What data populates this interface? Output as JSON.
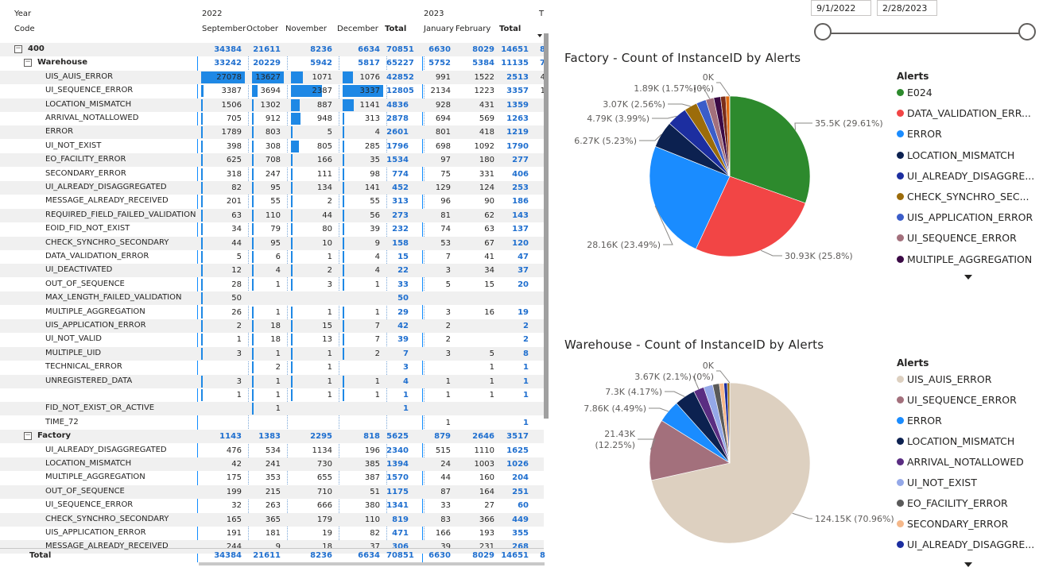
{
  "matrix": {
    "row_headers": [
      "Year",
      "Code"
    ],
    "years": [
      "2022",
      "2023",
      "T"
    ],
    "months": [
      "September",
      "October",
      "November",
      "December",
      "Total",
      "January",
      "February",
      "Total"
    ],
    "total_label": "Total",
    "totals": [
      "34384",
      "21611",
      "8236",
      "6634",
      "70851",
      "6630",
      "8029",
      "14651",
      "8"
    ],
    "rows": [
      {
        "level": 0,
        "label": "400",
        "exp": "⊟",
        "v": [
          "34384",
          "21611",
          "8236",
          "6634",
          "70851",
          "6630",
          "8029",
          "14651",
          "8"
        ]
      },
      {
        "level": 1,
        "label": "Warehouse",
        "exp": "⊟",
        "v": [
          "33242",
          "20229",
          "5942",
          "5817",
          "65227",
          "5752",
          "5384",
          "11135",
          "7"
        ]
      },
      {
        "level": 2,
        "label": "UIS_AUIS_ERROR",
        "v": [
          "27078",
          "13627",
          "1071",
          "1076",
          "42852",
          "991",
          "1522",
          "2513",
          "4"
        ]
      },
      {
        "level": 2,
        "label": "UI_SEQUENCE_ERROR",
        "v": [
          "3387",
          "3694",
          "2387",
          "3337",
          "12805",
          "2134",
          "1223",
          "3357",
          "1"
        ]
      },
      {
        "level": 2,
        "label": "LOCATION_MISMATCH",
        "v": [
          "1506",
          "1302",
          "887",
          "1141",
          "4836",
          "928",
          "431",
          "1359",
          ""
        ]
      },
      {
        "level": 2,
        "label": "ARRIVAL_NOTALLOWED",
        "v": [
          "705",
          "912",
          "948",
          "313",
          "2878",
          "694",
          "569",
          "1263",
          ""
        ]
      },
      {
        "level": 2,
        "label": "ERROR",
        "v": [
          "1789",
          "803",
          "5",
          "4",
          "2601",
          "801",
          "418",
          "1219",
          ""
        ]
      },
      {
        "level": 2,
        "label": "UI_NOT_EXIST",
        "v": [
          "398",
          "308",
          "805",
          "285",
          "1796",
          "698",
          "1092",
          "1790",
          ""
        ]
      },
      {
        "level": 2,
        "label": "EO_FACILITY_ERROR",
        "v": [
          "625",
          "708",
          "166",
          "35",
          "1534",
          "97",
          "180",
          "277",
          ""
        ]
      },
      {
        "level": 2,
        "label": "SECONDARY_ERROR",
        "v": [
          "318",
          "247",
          "111",
          "98",
          "774",
          "75",
          "331",
          "406",
          ""
        ]
      },
      {
        "level": 2,
        "label": "UI_ALREADY_DISAGGREGATED",
        "v": [
          "82",
          "95",
          "134",
          "141",
          "452",
          "129",
          "124",
          "253",
          ""
        ]
      },
      {
        "level": 2,
        "label": "MESSAGE_ALREADY_RECEIVED",
        "v": [
          "201",
          "55",
          "2",
          "55",
          "313",
          "96",
          "90",
          "186",
          ""
        ]
      },
      {
        "level": 2,
        "label": "REQUIRED_FIELD_FAILED_VALIDATION",
        "v": [
          "63",
          "110",
          "44",
          "56",
          "273",
          "81",
          "62",
          "143",
          ""
        ]
      },
      {
        "level": 2,
        "label": "EOID_FID_NOT_EXIST",
        "v": [
          "34",
          "79",
          "80",
          "39",
          "232",
          "74",
          "63",
          "137",
          ""
        ]
      },
      {
        "level": 2,
        "label": "CHECK_SYNCHRO_SECONDARY",
        "v": [
          "44",
          "95",
          "10",
          "9",
          "158",
          "53",
          "67",
          "120",
          ""
        ]
      },
      {
        "level": 2,
        "label": "DATA_VALIDATION_ERROR",
        "v": [
          "5",
          "6",
          "1",
          "4",
          "15",
          "7",
          "41",
          "47",
          ""
        ]
      },
      {
        "level": 2,
        "label": "UI_DEACTIVATED",
        "v": [
          "12",
          "4",
          "2",
          "4",
          "22",
          "3",
          "34",
          "37",
          ""
        ]
      },
      {
        "level": 2,
        "label": "OUT_OF_SEQUENCE",
        "v": [
          "28",
          "1",
          "3",
          "1",
          "33",
          "5",
          "15",
          "20",
          ""
        ]
      },
      {
        "level": 2,
        "label": "MAX_LENGTH_FAILED_VALIDATION",
        "v": [
          "50",
          "",
          "",
          "",
          "50",
          "",
          "",
          "",
          ""
        ]
      },
      {
        "level": 2,
        "label": "MULTIPLE_AGGREGATION",
        "v": [
          "26",
          "1",
          "1",
          "1",
          "29",
          "3",
          "16",
          "19",
          ""
        ]
      },
      {
        "level": 2,
        "label": "UIS_APPLICATION_ERROR",
        "v": [
          "2",
          "18",
          "15",
          "7",
          "42",
          "2",
          "",
          "2",
          ""
        ]
      },
      {
        "level": 2,
        "label": "UI_NOT_VALID",
        "v": [
          "1",
          "18",
          "13",
          "7",
          "39",
          "2",
          "",
          "2",
          ""
        ]
      },
      {
        "level": 2,
        "label": "MULTIPLE_UID",
        "v": [
          "3",
          "1",
          "1",
          "2",
          "7",
          "3",
          "5",
          "8",
          ""
        ]
      },
      {
        "level": 2,
        "label": "TECHNICAL_ERROR",
        "v": [
          "",
          "2",
          "1",
          "",
          "3",
          "",
          "1",
          "1",
          ""
        ]
      },
      {
        "level": 2,
        "label": "UNREGISTERED_DATA",
        "v": [
          "3",
          "1",
          "1",
          "1",
          "4",
          "1",
          "1",
          "1",
          ""
        ]
      },
      {
        "level": 2,
        "label": "",
        "v": [
          "1",
          "1",
          "1",
          "1",
          "1",
          "1",
          "1",
          "1",
          ""
        ]
      },
      {
        "level": 2,
        "label": "FID_NOT_EXIST_OR_ACTIVE",
        "v": [
          "",
          "1",
          "",
          "",
          "1",
          "",
          "",
          "",
          ""
        ]
      },
      {
        "level": 2,
        "label": "TIME_72",
        "v": [
          "",
          "",
          "",
          "",
          "",
          "1",
          "",
          "1",
          ""
        ]
      },
      {
        "level": 1,
        "label": "Factory",
        "exp": "⊟",
        "v": [
          "1143",
          "1383",
          "2295",
          "818",
          "5625",
          "879",
          "2646",
          "3517",
          ""
        ]
      },
      {
        "level": 2,
        "label": "UI_ALREADY_DISAGGREGATED",
        "v": [
          "476",
          "534",
          "1134",
          "196",
          "2340",
          "515",
          "1110",
          "1625",
          ""
        ]
      },
      {
        "level": 2,
        "label": "LOCATION_MISMATCH",
        "v": [
          "42",
          "241",
          "730",
          "385",
          "1394",
          "24",
          "1003",
          "1026",
          ""
        ]
      },
      {
        "level": 2,
        "label": "MULTIPLE_AGGREGATION",
        "v": [
          "175",
          "353",
          "655",
          "387",
          "1570",
          "44",
          "160",
          "204",
          ""
        ]
      },
      {
        "level": 2,
        "label": "OUT_OF_SEQUENCE",
        "v": [
          "199",
          "215",
          "710",
          "51",
          "1175",
          "87",
          "164",
          "251",
          ""
        ]
      },
      {
        "level": 2,
        "label": "UI_SEQUENCE_ERROR",
        "v": [
          "32",
          "263",
          "666",
          "380",
          "1341",
          "33",
          "27",
          "60",
          ""
        ]
      },
      {
        "level": 2,
        "label": "CHECK_SYNCHRO_SECONDARY",
        "v": [
          "165",
          "365",
          "179",
          "110",
          "819",
          "83",
          "366",
          "449",
          ""
        ]
      },
      {
        "level": 2,
        "label": "UIS_APPLICATION_ERROR",
        "v": [
          "191",
          "181",
          "19",
          "82",
          "471",
          "166",
          "193",
          "355",
          ""
        ]
      },
      {
        "level": 2,
        "label": "MESSAGE_ALREADY_RECEIVED",
        "v": [
          "244",
          "9",
          "18",
          "37",
          "306",
          "39",
          "231",
          "268",
          ""
        ]
      }
    ]
  },
  "slicer": {
    "start_date": "9/1/2022",
    "end_date": "2/28/2023"
  },
  "chart_data": [
    {
      "type": "pie",
      "title": "Factory - Count of InstanceID by Alerts",
      "legend_title": "Alerts",
      "legend_position": "right",
      "slices": [
        {
          "name": "E024",
          "value": 35.5,
          "unit": "K",
          "label": "35.5K (29.61%)",
          "color": "#2d8a2d"
        },
        {
          "name": "DATA_VALIDATION_ERR...",
          "value": 30.93,
          "unit": "K",
          "label": "30.93K (25.8%)",
          "color": "#f24545"
        },
        {
          "name": "ERROR",
          "value": 28.16,
          "unit": "K",
          "label": "28.16K (23.49%)",
          "color": "#1a8cff"
        },
        {
          "name": "LOCATION_MISMATCH",
          "value": 6.27,
          "unit": "K",
          "label": "6.27K (5.23%)",
          "color": "#0c2150"
        },
        {
          "name": "UI_ALREADY_DISAGGRE...",
          "value": 4.79,
          "unit": "K",
          "label": "4.79K (3.99%)",
          "color": "#1c2ea0"
        },
        {
          "name": "CHECK_SYNCHRO_SEC...",
          "value": 3.07,
          "unit": "K",
          "label": "3.07K (2.56%)",
          "color": "#9c6c0a"
        },
        {
          "name": "UIS_APPLICATION_ERROR",
          "value": 2.3,
          "unit": "K",
          "label": "",
          "color": "#3b5dc9"
        },
        {
          "name": "UI_SEQUENCE_ERROR",
          "value": 1.89,
          "unit": "K",
          "label": "1.89K (1.57%)",
          "color": "#a3707c"
        },
        {
          "name": "MULTIPLE_AGGREGATION",
          "value": 1.6,
          "unit": "K",
          "label": "",
          "color": "#3b0a45"
        },
        {
          "name": "",
          "value": 1.2,
          "unit": "K",
          "label": "",
          "color": "#7a2d1a"
        },
        {
          "name": "",
          "value": 0.9,
          "unit": "K",
          "label": "",
          "color": "#e06a10"
        },
        {
          "name": "",
          "value": 0.05,
          "unit": "K",
          "label": "0K (0%)",
          "color": "#1a8c50"
        }
      ],
      "legend": [
        "E024",
        "DATA_VALIDATION_ERR...",
        "ERROR",
        "LOCATION_MISMATCH",
        "UI_ALREADY_DISAGGRE...",
        "CHECK_SYNCHRO_SEC...",
        "UIS_APPLICATION_ERROR",
        "UI_SEQUENCE_ERROR",
        "MULTIPLE_AGGREGATION"
      ]
    },
    {
      "type": "pie",
      "title": "Warehouse - Count of InstanceID by Alerts",
      "legend_title": "Alerts",
      "legend_position": "right",
      "slices": [
        {
          "name": "UIS_AUIS_ERROR",
          "value": 124.15,
          "unit": "K",
          "label": "124.15K (70.96%)",
          "color": "#ddd0c0"
        },
        {
          "name": "UI_SEQUENCE_ERROR",
          "value": 21.43,
          "unit": "K",
          "label": "21.43K (12.25%)",
          "color": "#a3707c"
        },
        {
          "name": "ERROR",
          "value": 7.86,
          "unit": "K",
          "label": "7.86K (4.49%)",
          "color": "#1a8cff"
        },
        {
          "name": "LOCATION_MISMATCH",
          "value": 7.3,
          "unit": "K",
          "label": "7.3K (4.17%)",
          "color": "#0c2150"
        },
        {
          "name": "ARRIVAL_NOTALLOWED",
          "value": 3.67,
          "unit": "K",
          "label": "3.67K (2.1%)",
          "color": "#5a2d82"
        },
        {
          "name": "UI_NOT_EXIST",
          "value": 3.2,
          "unit": "K",
          "label": "",
          "color": "#94a8e8"
        },
        {
          "name": "EO_FACILITY_ERROR",
          "value": 2.3,
          "unit": "K",
          "label": "",
          "color": "#5a5a5a"
        },
        {
          "name": "SECONDARY_ERROR",
          "value": 1.6,
          "unit": "K",
          "label": "",
          "color": "#f5b88a"
        },
        {
          "name": "UI_ALREADY_DISAGGRE...",
          "value": 1.2,
          "unit": "K",
          "label": "",
          "color": "#1c2ea0"
        },
        {
          "name": "",
          "value": 0.8,
          "unit": "K",
          "label": "",
          "color": "#9c6c0a"
        },
        {
          "name": "",
          "value": 0.05,
          "unit": "K",
          "label": "0K (0%)",
          "color": "#2d8a2d"
        }
      ],
      "legend": [
        "UIS_AUIS_ERROR",
        "UI_SEQUENCE_ERROR",
        "ERROR",
        "LOCATION_MISMATCH",
        "ARRIVAL_NOTALLOWED",
        "UI_NOT_EXIST",
        "EO_FACILITY_ERROR",
        "SECONDARY_ERROR",
        "UI_ALREADY_DISAGGRE..."
      ]
    }
  ]
}
